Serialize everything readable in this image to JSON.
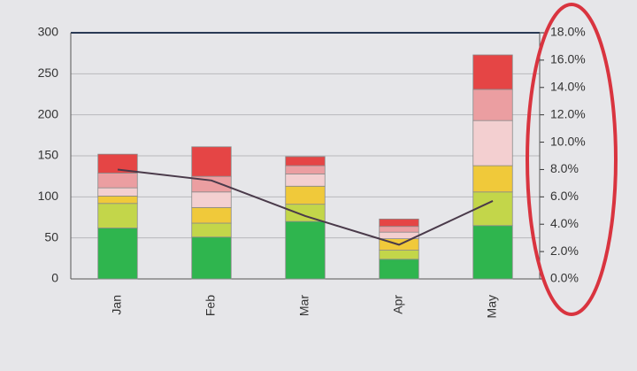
{
  "chart_data": {
    "type": "bar",
    "stacked": true,
    "grid": true,
    "categories": [
      "Jan",
      "Feb",
      "Mar",
      "Apr",
      "May"
    ],
    "series": [
      {
        "color": "#2fb54e",
        "values": [
          62,
          51,
          70,
          24,
          65
        ]
      },
      {
        "color": "#c3d64a",
        "values": [
          30,
          17,
          21,
          11,
          41
        ]
      },
      {
        "color": "#f0c93a",
        "values": [
          9,
          19,
          22,
          14,
          32
        ]
      },
      {
        "color": "#f3cfd0",
        "values": [
          10,
          19,
          15,
          8,
          55
        ]
      },
      {
        "color": "#eb9ea1",
        "values": [
          18,
          19,
          10,
          7,
          38
        ]
      },
      {
        "color": "#e54545",
        "values": [
          23,
          36,
          11,
          9,
          42
        ]
      },
      {
        "type": "line",
        "axis": "y2",
        "color": "#4a3a4a",
        "values": [
          8.0,
          7.2,
          4.6,
          2.5,
          5.7
        ]
      }
    ],
    "ylim": [
      0,
      300
    ],
    "yticks": [
      0,
      50,
      100,
      150,
      200,
      250,
      300
    ],
    "y2lim": [
      0,
      18
    ],
    "y2ticks": [
      {
        "value": 0,
        "label": "0.0%"
      },
      {
        "value": 2,
        "label": "2.0%"
      },
      {
        "value": 4,
        "label": "4.0%"
      },
      {
        "value": 6,
        "label": "6.0%"
      },
      {
        "value": 8,
        "label": "8.0%"
      },
      {
        "value": 10,
        "label": "10.0%"
      },
      {
        "value": 12,
        "label": "12.0%"
      },
      {
        "value": 14,
        "label": "14.0%"
      },
      {
        "value": 16,
        "label": "16.0%"
      },
      {
        "value": 18,
        "label": "18.0%"
      }
    ]
  }
}
